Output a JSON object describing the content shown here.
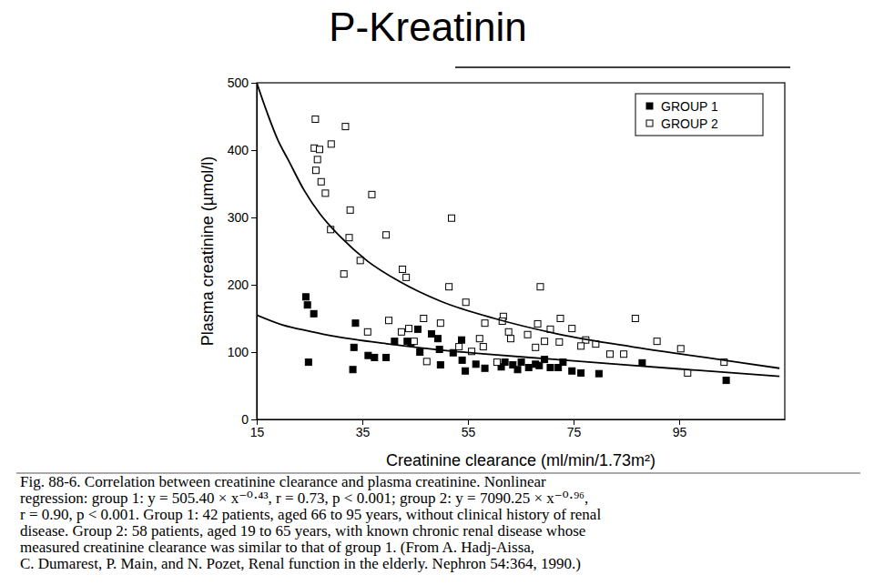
{
  "chart_data": {
    "type": "scatter",
    "title": "P-Kreatinin",
    "x_label": "Creatinine clearance (ml/min/1.73m²)",
    "y_label": "Plasma creatinine (µmol/l)",
    "xlim": [
      15,
      115
    ],
    "xticks": [
      15,
      35,
      55,
      75,
      95
    ],
    "ylim": [
      0,
      500
    ],
    "yticks": [
      0,
      100,
      200,
      300,
      400,
      500
    ],
    "grid": false,
    "legend": "upper-right",
    "series": [
      {
        "name": "GROUP 1",
        "type": "scatter",
        "marker": "square-filled",
        "color": "#000000",
        "x": [
          24.3,
          24.6,
          25.8,
          24.8,
          33.7,
          33.4,
          33.2,
          36.1,
          37.3,
          39.5,
          41.1,
          43.5,
          44.2,
          45.5,
          45.9,
          48.1,
          49.3,
          49.6,
          49.8,
          52.2,
          53.8,
          53.9,
          54.5,
          56.5,
          58.2,
          61.3,
          62.0,
          63.5,
          64.4,
          65.1,
          66.5,
          67.8,
          68.5,
          69.5,
          70.6,
          72.1,
          73.0,
          74.7,
          76.4,
          79.8,
          88.0,
          103.9
        ],
        "values": [
          182,
          170,
          157,
          85,
          143,
          107,
          74,
          95,
          92,
          92,
          116,
          116,
          114,
          134,
          100,
          127,
          120,
          104,
          81,
          99,
          118,
          88,
          72,
          82,
          76,
          78,
          85,
          81,
          74,
          85,
          77,
          82,
          80,
          89,
          77,
          77,
          85,
          72,
          69,
          68,
          84,
          58
        ]
      },
      {
        "name": "GROUP 2",
        "type": "scatter",
        "marker": "square-open",
        "color": "#000000",
        "x": [
          26.1,
          25.9,
          26.9,
          26.5,
          26.2,
          27.2,
          28.0,
          29.1,
          31.8,
          29.0,
          32.7,
          32.5,
          34.6,
          31.5,
          36.8,
          39.5,
          42.6,
          43.3,
          51.9,
          51.4,
          54.6,
          46.6,
          42.4,
          44.8,
          49.8,
          53.3,
          57.9,
          61.7,
          61.5,
          62.7,
          63.1,
          66.3,
          68.2,
          68.7,
          69.5,
          70.6,
          72.5,
          74.7,
          77.3,
          79.2,
          81.9,
          84.5,
          86.7,
          90.8,
          95.3,
          96.6,
          103.5,
          57.2,
          55.7,
          47.2,
          76.4,
          67.8,
          72.3,
          58.2,
          43.8,
          40.0,
          60.5,
          36.0
        ],
        "values": [
          446,
          403,
          401,
          386,
          370,
          353,
          336,
          409,
          435,
          282,
          311,
          270,
          236,
          216,
          334,
          274,
          223,
          211,
          299,
          197,
          174,
          150,
          130,
          116,
          143,
          108,
          108,
          153,
          146,
          130,
          120,
          126,
          142,
          197,
          116,
          134,
          150,
          135,
          118,
          112,
          97,
          97,
          150,
          116,
          105,
          69,
          85,
          120,
          101,
          86,
          109,
          107,
          115,
          143,
          135,
          147,
          85,
          130
        ]
      },
      {
        "type": "line",
        "line_style": "solid",
        "color": "#000000",
        "x": [
          15,
          17,
          19,
          21,
          24,
          27,
          31,
          36,
          42,
          50,
          60,
          72,
          86,
          100,
          114
        ],
        "values": [
          500,
          455,
          415,
          385,
          340,
          305,
          270,
          235,
          205,
          175,
          150,
          127,
          108,
          92,
          76
        ]
      },
      {
        "type": "line",
        "line_style": "solid",
        "color": "#000000",
        "x": [
          15,
          20,
          25,
          30,
          40,
          50,
          60,
          70,
          80,
          95,
          114
        ],
        "values": [
          155,
          140,
          131,
          123,
          112,
          103,
          96,
          90,
          84,
          75,
          64
        ]
      }
    ],
    "annotations": [
      "Fig. 88-6. Correlation between creatinine clearance and plasma creatinine. Nonlinear",
      "regression: group 1: y = 505.40 × x⁻⁰·⁴³, r = 0.73, p < 0.001; group 2: y = 7090.25 × x⁻⁰·⁹⁶,",
      "r = 0.90, p < 0.001. Group 1: 42 patients, aged 66 to 95 years, without clinical history of renal",
      "disease. Group 2: 58 patients, aged 19 to 65 years, with known chronic renal disease whose",
      "measured creatinine clearance was similar to that of group 1. (From A. Hadj-Aissa,",
      "C. Dumarest, P. Main, and N. Pozet, Renal function in the elderly. Nephron 54:364, 1990.)"
    ]
  }
}
